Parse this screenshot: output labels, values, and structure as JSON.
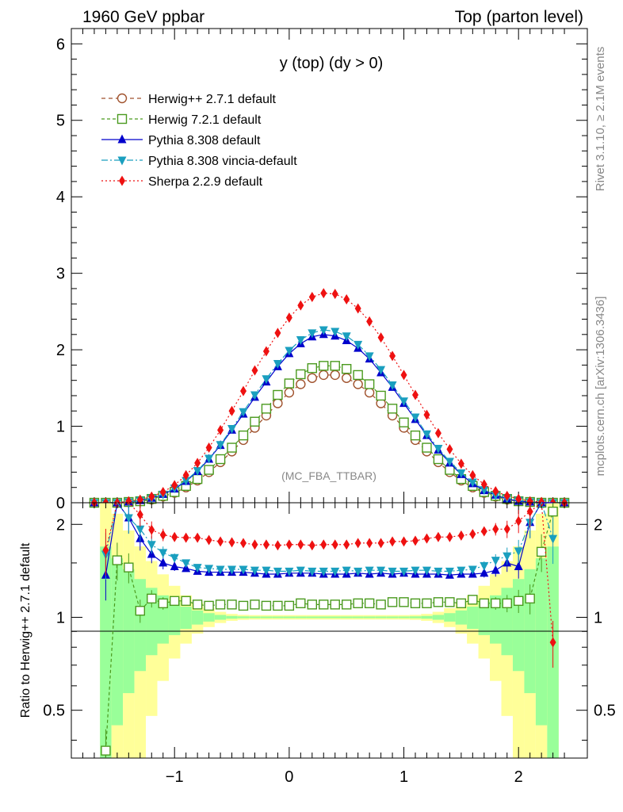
{
  "header": {
    "left": "1960 GeV ppbar",
    "right": "Top (parton level)"
  },
  "side": {
    "rivet": "Rivet 3.1.10, ≥ 2.1M events",
    "mcplots": "mcplots.cern.ch [arXiv:1306.3436]"
  },
  "chart_data": [
    {
      "type": "line",
      "title": "y (top) (dy > 0)",
      "annotation": "(MC_FBA_TTBAR)",
      "xlim": [
        -1.9,
        2.6
      ],
      "ylim": [
        0,
        6.2
      ],
      "yticks": [
        0,
        1,
        2,
        3,
        4,
        5,
        6
      ],
      "x": [
        -1.7,
        -1.6,
        -1.5,
        -1.4,
        -1.3,
        -1.2,
        -1.1,
        -1.0,
        -0.9,
        -0.8,
        -0.7,
        -0.6,
        -0.5,
        -0.4,
        -0.3,
        -0.2,
        -0.1,
        0.0,
        0.1,
        0.2,
        0.3,
        0.4,
        0.5,
        0.6,
        0.7,
        0.8,
        0.9,
        1.0,
        1.1,
        1.2,
        1.3,
        1.4,
        1.5,
        1.6,
        1.7,
        1.8,
        1.9,
        2.0,
        2.1,
        2.2,
        2.3,
        2.4
      ],
      "series": [
        {
          "name": "Herwig++ 2.7.1 default",
          "color": "#a0522d",
          "marker": "open-circle",
          "dash": "5,4",
          "values": [
            0.0,
            0.0,
            0.0,
            0.01,
            0.02,
            0.04,
            0.08,
            0.13,
            0.2,
            0.29,
            0.4,
            0.53,
            0.67,
            0.82,
            0.98,
            1.14,
            1.3,
            1.44,
            1.55,
            1.63,
            1.67,
            1.67,
            1.63,
            1.55,
            1.44,
            1.3,
            1.14,
            0.98,
            0.82,
            0.67,
            0.53,
            0.4,
            0.29,
            0.2,
            0.13,
            0.08,
            0.04,
            0.02,
            0.01,
            0.0,
            0.0,
            0.0
          ]
        },
        {
          "name": "Herwig 7.2.1 default",
          "color": "#4a9a1e",
          "marker": "open-square",
          "dash": "4,3",
          "values": [
            0.0,
            0.0,
            0.0,
            0.01,
            0.02,
            0.05,
            0.09,
            0.14,
            0.22,
            0.31,
            0.43,
            0.57,
            0.72,
            0.88,
            1.06,
            1.23,
            1.41,
            1.56,
            1.68,
            1.76,
            1.79,
            1.79,
            1.75,
            1.67,
            1.55,
            1.4,
            1.23,
            1.05,
            0.88,
            0.72,
            0.57,
            0.43,
            0.31,
            0.22,
            0.14,
            0.09,
            0.05,
            0.02,
            0.01,
            0.0,
            0.0,
            0.0
          ]
        },
        {
          "name": "Pythia 8.308 default",
          "color": "#0000cc",
          "marker": "triangle-up",
          "dash": "",
          "values": [
            0.0,
            0.0,
            0.0,
            0.01,
            0.03,
            0.06,
            0.11,
            0.18,
            0.28,
            0.41,
            0.57,
            0.75,
            0.95,
            1.16,
            1.38,
            1.58,
            1.78,
            1.95,
            2.08,
            2.17,
            2.2,
            2.18,
            2.12,
            2.02,
            1.88,
            1.7,
            1.51,
            1.3,
            1.09,
            0.88,
            0.69,
            0.52,
            0.37,
            0.25,
            0.16,
            0.1,
            0.05,
            0.02,
            0.01,
            0.0,
            0.0,
            0.0
          ]
        },
        {
          "name": "Pythia 8.308 vincia-default",
          "color": "#1a9fbf",
          "marker": "triangle-down",
          "dash": "8,3,2,3",
          "values": [
            0.0,
            0.0,
            0.0,
            0.01,
            0.03,
            0.06,
            0.11,
            0.19,
            0.29,
            0.42,
            0.58,
            0.76,
            0.97,
            1.19,
            1.41,
            1.62,
            1.82,
            1.99,
            2.13,
            2.22,
            2.26,
            2.24,
            2.18,
            2.07,
            1.92,
            1.74,
            1.54,
            1.33,
            1.12,
            0.9,
            0.71,
            0.54,
            0.39,
            0.27,
            0.17,
            0.1,
            0.06,
            0.03,
            0.01,
            0.0,
            0.0,
            0.0
          ]
        },
        {
          "name": "Sherpa 2.2.9 default",
          "color": "#ee1111",
          "marker": "diamond",
          "dash": "2,3",
          "values": [
            0.0,
            0.0,
            0.0,
            0.02,
            0.04,
            0.08,
            0.14,
            0.23,
            0.36,
            0.52,
            0.72,
            0.95,
            1.2,
            1.46,
            1.73,
            1.98,
            2.22,
            2.42,
            2.58,
            2.69,
            2.74,
            2.73,
            2.66,
            2.54,
            2.37,
            2.16,
            1.92,
            1.67,
            1.41,
            1.15,
            0.91,
            0.7,
            0.51,
            0.36,
            0.24,
            0.15,
            0.09,
            0.05,
            0.02,
            0.01,
            0.0,
            0.0
          ]
        }
      ]
    },
    {
      "type": "line",
      "ylabel": "Ratio to Herwig++ 2.7.1 default",
      "xlim": [
        -1.9,
        2.6
      ],
      "ylim": [
        0.35,
        2.35
      ],
      "log_scale_y": true,
      "yticks": [
        0.5,
        1,
        2
      ],
      "xticks": [
        -1,
        0,
        1,
        2
      ],
      "x": [
        -1.6,
        -1.5,
        -1.4,
        -1.3,
        -1.2,
        -1.1,
        -1.0,
        -0.9,
        -0.8,
        -0.7,
        -0.6,
        -0.5,
        -0.4,
        -0.3,
        -0.2,
        -0.1,
        0.0,
        0.1,
        0.2,
        0.3,
        0.4,
        0.5,
        0.6,
        0.7,
        0.8,
        0.9,
        1.0,
        1.1,
        1.2,
        1.3,
        1.4,
        1.5,
        1.6,
        1.7,
        1.8,
        1.9,
        2.0,
        2.1,
        2.2,
        2.3
      ],
      "series": [
        {
          "name": "Herwig 7.2.1 default",
          "color": "#4a9a1e",
          "marker": "open-square",
          "dash": "4,3",
          "values": [
            0.37,
            1.53,
            1.45,
            1.05,
            1.15,
            1.11,
            1.13,
            1.13,
            1.1,
            1.09,
            1.1,
            1.1,
            1.09,
            1.1,
            1.09,
            1.09,
            1.09,
            1.11,
            1.1,
            1.1,
            1.1,
            1.1,
            1.11,
            1.11,
            1.1,
            1.12,
            1.12,
            1.11,
            1.11,
            1.12,
            1.12,
            1.11,
            1.14,
            1.11,
            1.11,
            1.11,
            1.13,
            1.15,
            1.63,
            2.2
          ]
        },
        {
          "name": "Pythia 8.308 default",
          "color": "#0000cc",
          "marker": "triangle-up",
          "dash": "",
          "values": [
            1.37,
            2.4,
            2.1,
            1.8,
            1.6,
            1.5,
            1.46,
            1.44,
            1.41,
            1.4,
            1.4,
            1.4,
            1.4,
            1.39,
            1.38,
            1.38,
            1.39,
            1.39,
            1.39,
            1.38,
            1.38,
            1.38,
            1.39,
            1.38,
            1.39,
            1.38,
            1.39,
            1.38,
            1.38,
            1.38,
            1.37,
            1.38,
            1.38,
            1.39,
            1.42,
            1.5,
            1.46,
            2.03,
            2.4,
            2.4
          ]
        },
        {
          "name": "Pythia 8.308 vincia-default",
          "color": "#1a9fbf",
          "marker": "triangle-down",
          "dash": "8,3,2,3",
          "values": [
            1.6,
            2.4,
            2.1,
            1.93,
            1.72,
            1.62,
            1.56,
            1.5,
            1.45,
            1.44,
            1.43,
            1.43,
            1.43,
            1.42,
            1.42,
            1.41,
            1.41,
            1.42,
            1.41,
            1.41,
            1.41,
            1.42,
            1.41,
            1.42,
            1.42,
            1.41,
            1.41,
            1.42,
            1.42,
            1.41,
            1.41,
            1.42,
            1.43,
            1.47,
            1.53,
            1.58,
            1.64,
            2.03,
            2.4,
            1.8
          ]
        },
        {
          "name": "Sherpa 2.2.9 default",
          "color": "#ee1111",
          "marker": "diamond",
          "dash": "2,3",
          "values": [
            1.65,
            2.4,
            2.4,
            2.15,
            1.92,
            1.85,
            1.82,
            1.81,
            1.81,
            1.78,
            1.76,
            1.75,
            1.74,
            1.72,
            1.72,
            1.71,
            1.72,
            1.72,
            1.71,
            1.72,
            1.72,
            1.72,
            1.74,
            1.74,
            1.74,
            1.76,
            1.76,
            1.77,
            1.8,
            1.82,
            1.82,
            1.84,
            1.86,
            1.9,
            1.93,
            1.93,
            2.05,
            2.2,
            2.4,
            0.83
          ]
        }
      ]
    }
  ]
}
